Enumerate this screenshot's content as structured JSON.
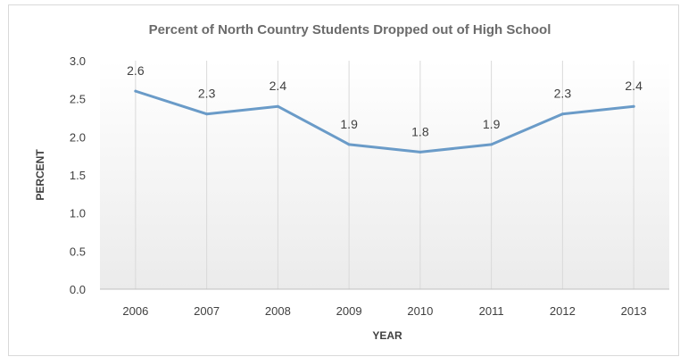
{
  "chart_data": {
    "type": "line",
    "title": "Percent of North Country Students Dropped out of High School",
    "xlabel": "YEAR",
    "ylabel": "PERCENT",
    "x": [
      "2006",
      "2007",
      "2008",
      "2009",
      "2010",
      "2011",
      "2012",
      "2013"
    ],
    "series": [
      {
        "values": [
          2.6,
          2.3,
          2.4,
          1.9,
          1.8,
          1.9,
          2.3,
          2.4
        ],
        "labels": [
          "2.6",
          "2.3",
          "2.4",
          "1.9",
          "1.8",
          "1.9",
          "2.3",
          "2.4"
        ]
      }
    ],
    "ylim": [
      0,
      3
    ],
    "yticks": [
      "0.0",
      "0.5",
      "1.0",
      "1.5",
      "2.0",
      "2.5",
      "3.0"
    ],
    "grid": "vertical",
    "legend": "none",
    "colors": {
      "line": "#6a9bc8",
      "grid": "#d9d9d9",
      "plot_gradient_top": "#ffffff",
      "plot_gradient_bottom": "#ebebeb"
    }
  }
}
